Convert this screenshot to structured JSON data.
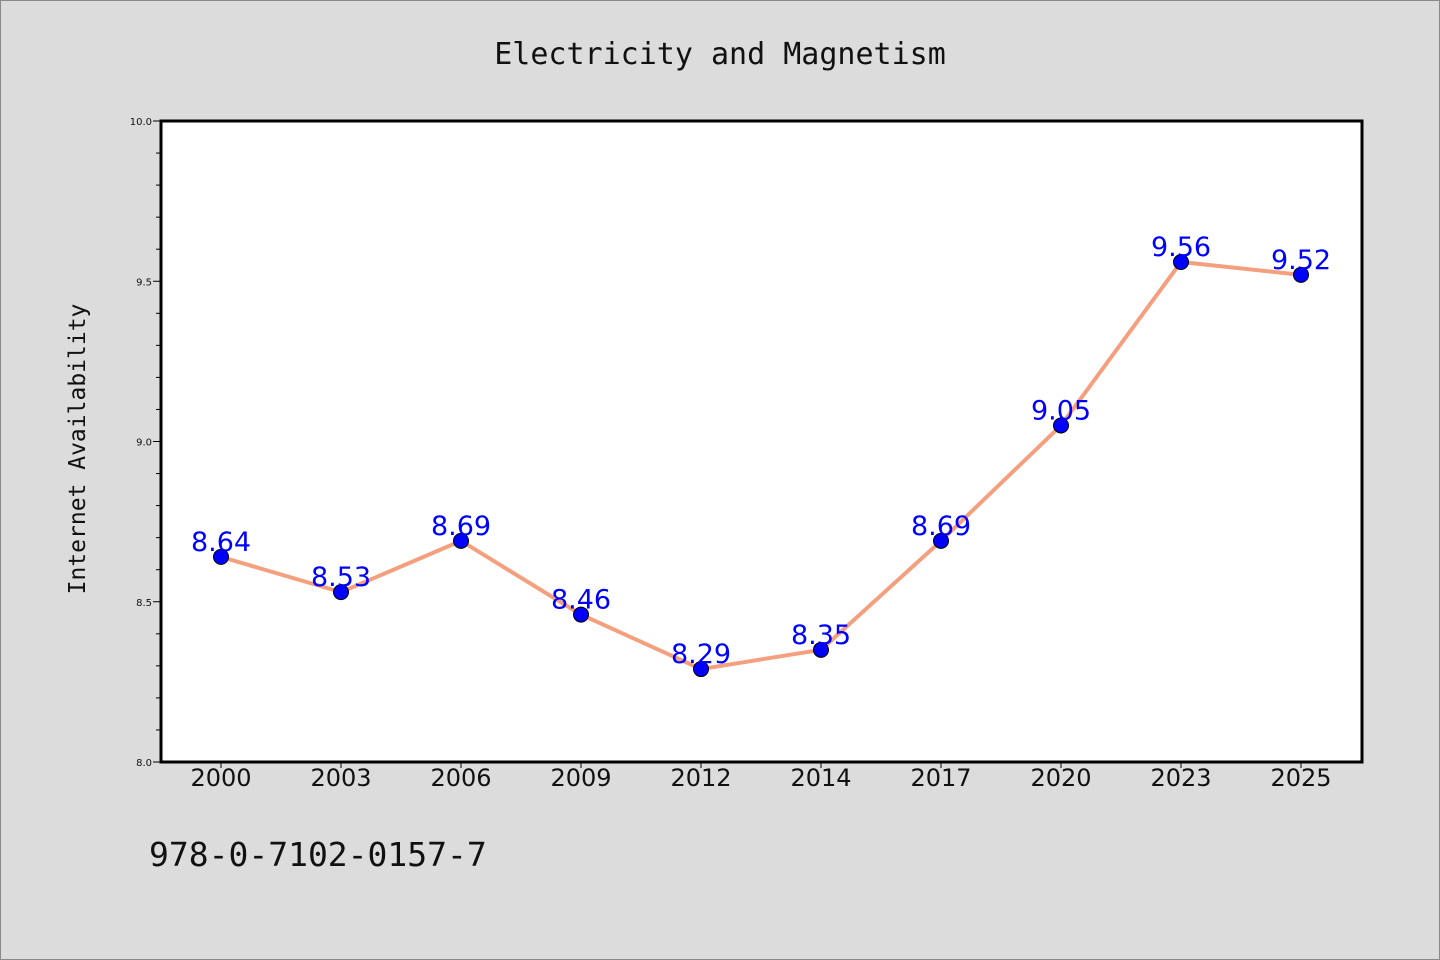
{
  "chart_data": {
    "type": "line",
    "title": "Electricity and Magnetism",
    "xlabel": "",
    "ylabel": "Internet Availability",
    "categories": [
      "2000",
      "2003",
      "2006",
      "2009",
      "2012",
      "2014",
      "2017",
      "2020",
      "2023",
      "2025"
    ],
    "series": [
      {
        "values": [
          8.64,
          8.53,
          8.69,
          8.46,
          8.29,
          8.35,
          8.69,
          9.05,
          9.56,
          9.52
        ],
        "labels": [
          "8.64",
          "8.53",
          "8.69",
          "8.46",
          "8.29",
          "8.35",
          "8.69",
          "9.05",
          "9.56",
          "9.52"
        ],
        "line_color": "#f4a07f",
        "marker_color": "#0000ff"
      }
    ],
    "ylim": [
      8.0,
      10.0
    ],
    "yticks": [
      "8.0",
      "8.5",
      "9.0",
      "9.5",
      "10.0"
    ],
    "grid": false,
    "legend": "none"
  },
  "footer": {
    "code": "978-0-7102-0157-7"
  },
  "colors": {
    "background": "#dcdcdc",
    "plot_background": "#ffffff",
    "line": "#f4a07f",
    "marker": "#0000ff",
    "data_label": "#0000ff"
  }
}
